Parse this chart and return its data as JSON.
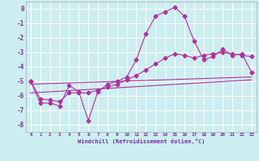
{
  "xlabel": "Windchill (Refroidissement éolien,°C)",
  "bg_color": "#cceef0",
  "grid_color": "#ffffff",
  "line_color": "#b030a0",
  "xlim": [
    -0.5,
    23.5
  ],
  "ylim": [
    -8.5,
    0.5
  ],
  "yticks": [
    0,
    -1,
    -2,
    -3,
    -4,
    -5,
    -6,
    -7,
    -8
  ],
  "xticks": [
    0,
    1,
    2,
    3,
    4,
    5,
    6,
    7,
    8,
    9,
    10,
    11,
    12,
    13,
    14,
    15,
    16,
    17,
    18,
    19,
    20,
    21,
    22,
    23
  ],
  "series1_x": [
    0,
    1,
    2,
    3,
    4,
    5,
    6,
    7,
    8,
    9,
    10,
    11,
    12,
    13,
    14,
    15,
    16,
    17,
    18,
    19,
    20,
    21,
    22,
    23
  ],
  "series1_y": [
    -5.0,
    -6.5,
    -6.5,
    -6.7,
    -5.3,
    -5.7,
    -7.7,
    -5.7,
    -5.2,
    -5.0,
    -4.7,
    -3.5,
    -1.7,
    -0.5,
    -0.2,
    0.1,
    -0.5,
    -2.2,
    -3.5,
    -3.3,
    -2.8,
    -3.2,
    -3.1,
    -4.4
  ],
  "series2_x": [
    0,
    1,
    2,
    3,
    4,
    5,
    6,
    7,
    8,
    9,
    10,
    11,
    12,
    13,
    14,
    15,
    16,
    17,
    18,
    19,
    20,
    21,
    22,
    23
  ],
  "series2_y": [
    -5.0,
    -6.2,
    -6.3,
    -6.4,
    -5.8,
    -5.8,
    -5.8,
    -5.6,
    -5.4,
    -5.2,
    -4.9,
    -4.6,
    -4.2,
    -3.8,
    -3.4,
    -3.1,
    -3.2,
    -3.4,
    -3.2,
    -3.1,
    -3.0,
    -3.1,
    -3.2,
    -3.3
  ],
  "series3_x": [
    0,
    23
  ],
  "series3_y": [
    -5.2,
    -4.7
  ],
  "series4_x": [
    0,
    23
  ],
  "series4_y": [
    -5.8,
    -4.9
  ]
}
